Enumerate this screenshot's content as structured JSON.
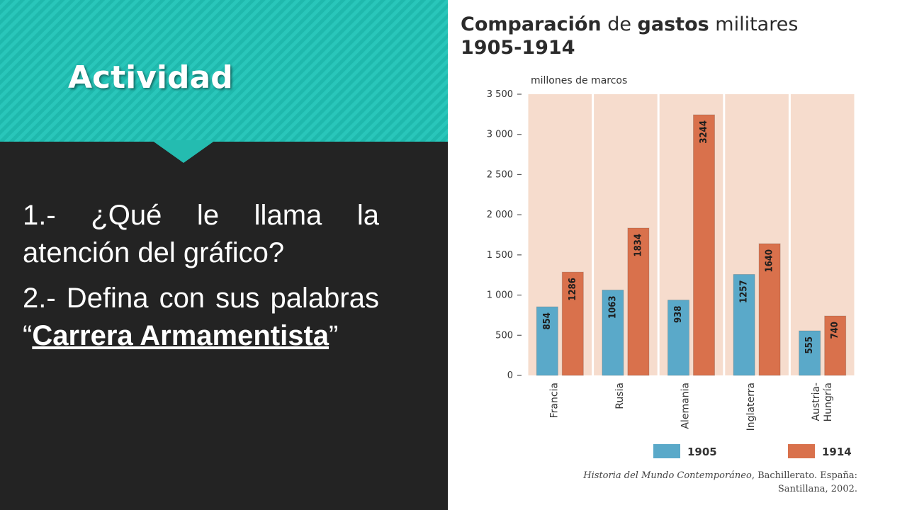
{
  "slide": {
    "title": "Actividad",
    "question1": "1.- ¿Qué le llama la atención del gráfico?",
    "question2_prefix": "2.- Defina con sus palabras “",
    "question2_term": "Carrera Armamentista",
    "question2_suffix": "”"
  },
  "chart_title": {
    "part1": "Comparación",
    "part2": " de ",
    "part3": "gastos",
    "part3b": " militares",
    "part4": "1905-1914"
  },
  "source": {
    "work": "Historia del Mundo Contemporáneo",
    "rest": ", Bachillerato. España:",
    "line2": "Santillana, 2002."
  },
  "colors": {
    "series_1905": "#5aa9c9",
    "series_1914": "#d9714c",
    "chart_background": "#f6dccd",
    "teal_banner": "#24bcb0",
    "dark_panel": "#232323"
  },
  "chart_data": {
    "type": "bar",
    "title": "Comparación de gastos militares 1905-1914",
    "ylabel": "millones de marcos",
    "xlabel": "",
    "categories": [
      "Francia",
      "Rusia",
      "Alemania",
      "Inglaterra",
      "Austria-Hungría"
    ],
    "category_labels": [
      [
        "Francia"
      ],
      [
        "Rusia"
      ],
      [
        "Alemania"
      ],
      [
        "Inglaterra"
      ],
      [
        "Austria-",
        "Hungría"
      ]
    ],
    "series": [
      {
        "name": "1905",
        "values": [
          854,
          1063,
          938,
          1257,
          555
        ]
      },
      {
        "name": "1914",
        "values": [
          1286,
          1834,
          3244,
          1640,
          740
        ]
      }
    ],
    "ylim": [
      0,
      3500
    ],
    "yticks": [
      0,
      500,
      1000,
      1500,
      2000,
      2500,
      3000,
      3500
    ],
    "ytick_labels": [
      "0",
      "500",
      "1 000",
      "1 500",
      "2 000",
      "2 500",
      "3 000",
      "3 500"
    ],
    "grid": false,
    "legend_position": "bottom"
  }
}
